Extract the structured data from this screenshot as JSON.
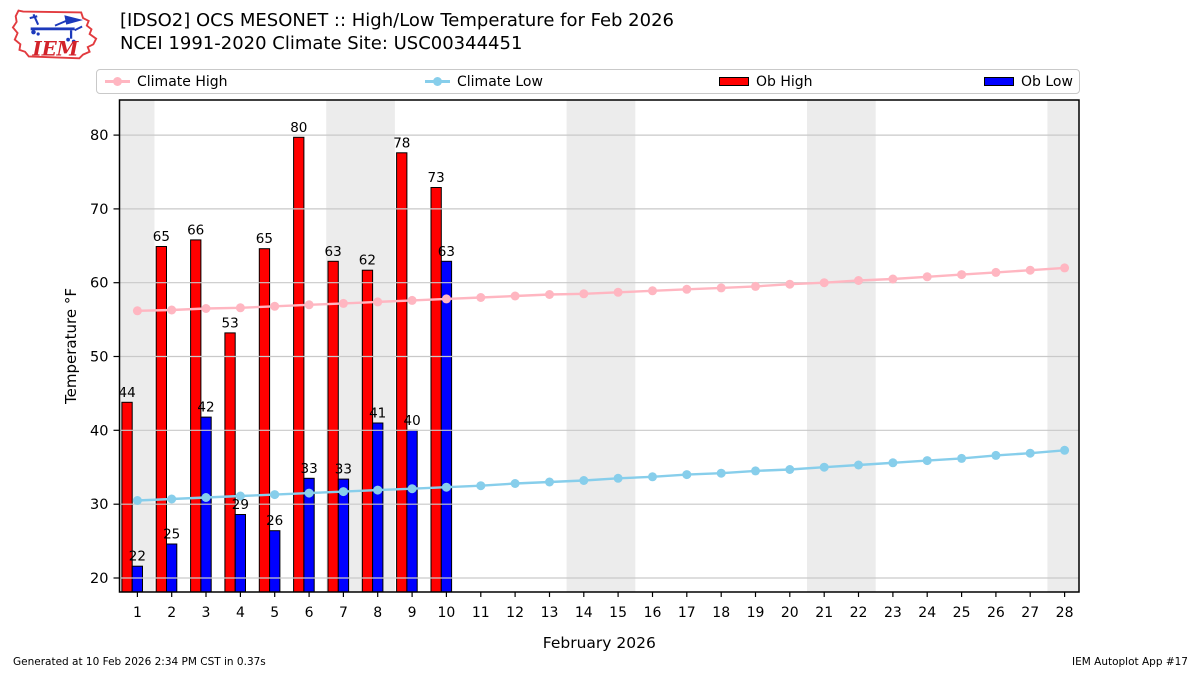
{
  "header": {
    "title_line1": "[IDSO2] OCS MESONET :: High/Low Temperature for Feb 2026",
    "title_line2": "NCEI 1991-2020 Climate Site: USC00344451",
    "logo_text": "IEM"
  },
  "legend": {
    "items": [
      {
        "label": "Climate High",
        "type": "line",
        "color": "#FFB6C1"
      },
      {
        "label": "Climate Low",
        "type": "line",
        "color": "#87CEEB"
      },
      {
        "label": "Ob High",
        "type": "patch",
        "color": "#FF0000"
      },
      {
        "label": "Ob Low",
        "type": "patch",
        "color": "#0000FF"
      }
    ]
  },
  "footer": {
    "left": "Generated at 10 Feb 2026 2:34 PM CST in 0.37s",
    "right": "IEM Autoplot App #17"
  },
  "chart_data": {
    "type": "bar",
    "title": "[IDSO2] OCS MESONET :: High/Low Temperature for Feb 2026",
    "subtitle": "NCEI 1991-2020 Climate Site: USC00344451",
    "xlabel": "February 2026",
    "ylabel": "Temperature °F",
    "xlim": [
      0.48,
      28.42
    ],
    "ylim": [
      18.1,
      84.75
    ],
    "xticks": [
      1,
      2,
      3,
      4,
      5,
      6,
      7,
      8,
      9,
      10,
      11,
      12,
      13,
      14,
      15,
      16,
      17,
      18,
      19,
      20,
      21,
      22,
      23,
      24,
      25,
      26,
      27,
      28
    ],
    "yticks": [
      20,
      30,
      40,
      50,
      60,
      70,
      80
    ],
    "grid": "horizontal",
    "legend_position": "top",
    "weekend_bands": [
      [
        0.48,
        1.5
      ],
      [
        6.5,
        8.5
      ],
      [
        13.5,
        15.5
      ],
      [
        20.5,
        22.5
      ],
      [
        27.5,
        28.42
      ]
    ],
    "series": [
      {
        "name": "Climate High",
        "type": "line",
        "color": "#FFB6C1",
        "days": [
          1,
          2,
          3,
          4,
          5,
          6,
          7,
          8,
          9,
          10,
          11,
          12,
          13,
          14,
          15,
          16,
          17,
          18,
          19,
          20,
          21,
          22,
          23,
          24,
          25,
          26,
          27,
          28
        ],
        "values": [
          56.2,
          56.3,
          56.5,
          56.6,
          56.8,
          57.0,
          57.2,
          57.4,
          57.6,
          57.8,
          58.0,
          58.2,
          58.4,
          58.5,
          58.7,
          58.9,
          59.1,
          59.3,
          59.5,
          59.8,
          60.0,
          60.3,
          60.5,
          60.8,
          61.1,
          61.4,
          61.7,
          62.0
        ]
      },
      {
        "name": "Climate Low",
        "type": "line",
        "color": "#87CEEB",
        "days": [
          1,
          2,
          3,
          4,
          5,
          6,
          7,
          8,
          9,
          10,
          11,
          12,
          13,
          14,
          15,
          16,
          17,
          18,
          19,
          20,
          21,
          22,
          23,
          24,
          25,
          26,
          27,
          28
        ],
        "values": [
          30.5,
          30.7,
          30.9,
          31.1,
          31.3,
          31.5,
          31.7,
          31.9,
          32.1,
          32.3,
          32.5,
          32.8,
          33.0,
          33.2,
          33.5,
          33.7,
          34.0,
          34.2,
          34.5,
          34.7,
          35.0,
          35.3,
          35.6,
          35.9,
          36.2,
          36.6,
          36.9,
          37.3
        ]
      },
      {
        "name": "Ob High",
        "type": "bar",
        "color": "#FF0000",
        "days": [
          1,
          2,
          3,
          4,
          5,
          6,
          7,
          8,
          9,
          10
        ],
        "values": [
          43.8,
          64.9,
          65.8,
          53.2,
          64.6,
          79.7,
          62.9,
          61.7,
          77.6,
          72.9
        ],
        "labels": [
          44,
          65,
          66,
          53,
          65,
          80,
          63,
          62,
          78,
          73
        ]
      },
      {
        "name": "Ob Low",
        "type": "bar",
        "color": "#0000FF",
        "days": [
          1,
          2,
          3,
          4,
          5,
          6,
          7,
          8,
          9,
          10
        ],
        "values": [
          21.6,
          24.6,
          41.8,
          28.6,
          26.4,
          33.5,
          33.4,
          41.0,
          40.0,
          62.9
        ],
        "labels": [
          22,
          25,
          42,
          29,
          26,
          33,
          33,
          41,
          40,
          63
        ]
      }
    ],
    "colors": {
      "grid": "#c9c9c9",
      "band": "#ececec",
      "spine": "#000000",
      "bar_edge": "#000000"
    }
  }
}
